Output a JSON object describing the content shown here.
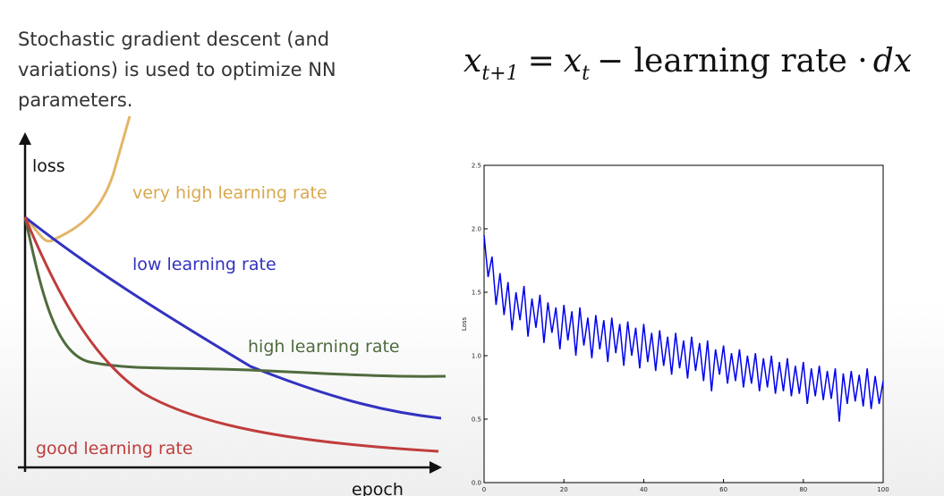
{
  "slide": {
    "text": [
      "Stochastic gradient descent (and",
      "variations) is used to optimize NN",
      "parameters."
    ],
    "formula": {
      "base1": "x",
      "sub1": "t+1",
      "eq": "=",
      "base2": "x",
      "sub2": "t",
      "rest": "− learning rate ·",
      "dx": "dx"
    }
  },
  "chart_data": [
    {
      "type": "schematic",
      "ylabel": "loss",
      "xlabel": "epoch",
      "curve_labels": {
        "very_high": "very high learning rate",
        "low": "low learning rate",
        "high": "high learning rate",
        "good": "good learning rate"
      }
    },
    {
      "type": "line",
      "ylabel": "Loss",
      "color": "#0000ee",
      "xlim": [
        0,
        100
      ],
      "xticks": [
        0,
        20,
        40,
        60,
        80,
        100
      ],
      "ylim": [
        0,
        2.5
      ],
      "yticks": [
        {
          "value": 0,
          "label": "0.0"
        },
        0.5,
        {
          "value": 1,
          "label": "1.0"
        },
        1.5,
        {
          "value": 2,
          "label": "2.0"
        },
        2.5
      ],
      "x": [
        0,
        1,
        2,
        3,
        4,
        5,
        6,
        7,
        8,
        9,
        10,
        11,
        12,
        13,
        14,
        15,
        16,
        17,
        18,
        19,
        20,
        21,
        22,
        23,
        24,
        25,
        26,
        27,
        28,
        29,
        30,
        31,
        32,
        33,
        34,
        35,
        36,
        37,
        38,
        39,
        40,
        41,
        42,
        43,
        44,
        45,
        46,
        47,
        48,
        49,
        50,
        51,
        52,
        53,
        54,
        55,
        56,
        57,
        58,
        59,
        60,
        61,
        62,
        63,
        64,
        65,
        66,
        67,
        68,
        69,
        70,
        71,
        72,
        73,
        74,
        75,
        76,
        77,
        78,
        79,
        80,
        81,
        82,
        83,
        84,
        85,
        86,
        87,
        88,
        89,
        90,
        91,
        92,
        93,
        94,
        95,
        96,
        97,
        98,
        99,
        100
      ],
      "values": [
        1.95,
        1.62,
        1.78,
        1.4,
        1.65,
        1.32,
        1.58,
        1.2,
        1.5,
        1.28,
        1.55,
        1.15,
        1.45,
        1.22,
        1.48,
        1.1,
        1.42,
        1.18,
        1.38,
        1.05,
        1.4,
        1.12,
        1.35,
        1.0,
        1.38,
        1.08,
        1.3,
        0.98,
        1.32,
        1.05,
        1.28,
        0.95,
        1.3,
        1.02,
        1.25,
        0.92,
        1.27,
        1.0,
        1.22,
        0.9,
        1.25,
        0.95,
        1.18,
        0.88,
        1.2,
        0.92,
        1.15,
        0.85,
        1.18,
        0.9,
        1.12,
        0.82,
        1.15,
        0.88,
        1.1,
        0.8,
        1.12,
        0.72,
        1.05,
        0.85,
        1.08,
        0.78,
        1.02,
        0.8,
        1.05,
        0.75,
        1.0,
        0.78,
        1.02,
        0.72,
        0.98,
        0.75,
        1.0,
        0.7,
        0.95,
        0.72,
        0.98,
        0.68,
        0.92,
        0.7,
        0.95,
        0.62,
        0.9,
        0.68,
        0.92,
        0.65,
        0.88,
        0.66,
        0.9,
        0.48,
        0.86,
        0.62,
        0.88,
        0.64,
        0.85,
        0.6,
        0.9,
        0.58,
        0.84,
        0.62,
        0.8
      ]
    }
  ]
}
